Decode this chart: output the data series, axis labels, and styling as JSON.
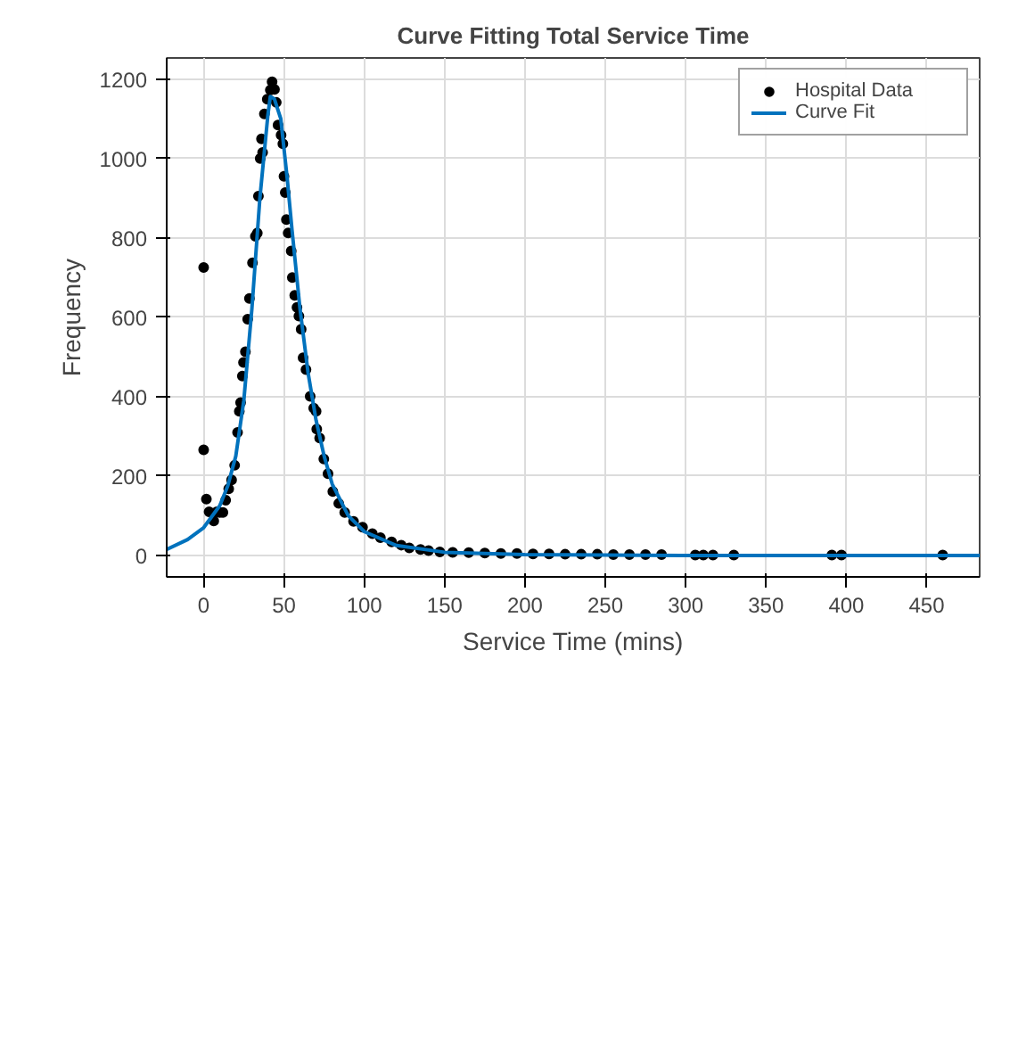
{
  "chart_data": {
    "type": "scatter",
    "title": "Curve Fitting Total Service Time",
    "xlabel": "Service Time (mins)",
    "ylabel": "Frequency",
    "xlim": [
      -23,
      483
    ],
    "ylim": [
      -54,
      1253
    ],
    "xticks": [
      0,
      50,
      100,
      150,
      200,
      250,
      300,
      350,
      400,
      450
    ],
    "yticks": [
      0,
      200,
      400,
      600,
      800,
      1000,
      1200
    ],
    "grid": true,
    "legend": "top right",
    "series": [
      {
        "name": "Hospital Data",
        "marker": "circle",
        "color": "#000000",
        "x": [
          0,
          0,
          1.7,
          3.4,
          6.3,
          8.2,
          10,
          12,
          13.7,
          15.6,
          17.4,
          19.3,
          21.1,
          22.2,
          23,
          24.1,
          24.8,
          26,
          27.4,
          28.5,
          30.4,
          32.2,
          33.4,
          34.1,
          35.2,
          36,
          36.7,
          37.8,
          39.6,
          41.5,
          42.6,
          44.1,
          45.2,
          46.3,
          48.2,
          49.3,
          50,
          50.8,
          51.5,
          52.6,
          54.5,
          55.2,
          56.7,
          58.1,
          59.3,
          60.7,
          61.9,
          63.7,
          66.3,
          68.5,
          70,
          70.4,
          72.2,
          74.8,
          77.4,
          80.4,
          84.1,
          87.8,
          93.3,
          98.9,
          105,
          110,
          117,
          123,
          128,
          135,
          140,
          147,
          155,
          165,
          175,
          185,
          195,
          205,
          215,
          225,
          235,
          245,
          255,
          265,
          275,
          285,
          306,
          311,
          317,
          330,
          391,
          397,
          460
        ],
        "values": [
          725,
          266,
          142,
          110,
          87,
          110,
          108,
          108,
          139,
          168,
          190,
          227,
          310,
          363,
          385,
          452,
          486,
          513,
          595,
          647,
          737,
          804,
          812,
          905,
          1000,
          1049,
          1015,
          1112,
          1149,
          1172,
          1193,
          1174,
          1141,
          1084,
          1059,
          1037,
          955,
          914,
          846,
          812,
          767,
          700,
          655,
          625,
          603,
          570,
          498,
          468,
          401,
          371,
          363,
          318,
          296,
          243,
          206,
          161,
          131,
          108,
          86,
          71,
          55,
          45,
          34,
          26,
          19,
          15,
          12,
          9,
          8,
          7,
          6,
          5,
          5,
          4,
          4,
          3,
          3,
          3,
          2,
          2,
          2,
          2,
          1,
          1,
          1,
          1,
          1,
          1,
          1
        ]
      },
      {
        "name": "Curve Fit",
        "type": "line",
        "marker": "none",
        "line_style": "solid",
        "color": "#0072bd",
        "x": [
          -23,
          -10,
          0,
          10,
          15,
          20,
          25,
          30,
          35,
          40,
          41.5,
          44,
          48,
          52,
          55,
          60,
          65,
          70,
          75,
          80,
          90,
          100,
          120,
          150,
          200,
          250,
          300,
          483
        ],
        "values": [
          15,
          40,
          70,
          125,
          175,
          250,
          390,
          620,
          900,
          1110,
          1156,
          1150,
          1100,
          950,
          820,
          620,
          460,
          340,
          250,
          180,
          100,
          60,
          25,
          8,
          2,
          1,
          0,
          0
        ]
      }
    ]
  }
}
